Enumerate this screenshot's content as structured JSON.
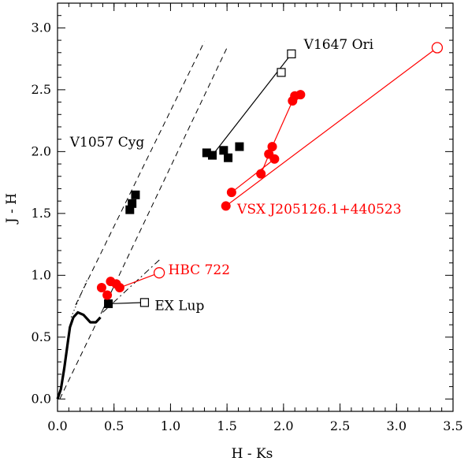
{
  "chart_data": {
    "type": "scatter",
    "xlabel": "H - Ks",
    "ylabel": "J - H",
    "xlim": [
      0.0,
      3.5
    ],
    "ylim": [
      -0.1,
      3.2
    ],
    "x_ticks": [
      "0.0",
      "0.5",
      "1.0",
      "1.5",
      "2.0",
      "2.5",
      "3.0",
      "3.5"
    ],
    "y_ticks": [
      "0.0",
      "0.5",
      "1.0",
      "1.5",
      "2.0",
      "2.5",
      "3.0"
    ],
    "grid": false,
    "colors": {
      "black": "#000000",
      "red": "#ff0000"
    },
    "main_sequence": [
      [
        0.0,
        0.0
      ],
      [
        0.03,
        0.08
      ],
      [
        0.06,
        0.25
      ],
      [
        0.09,
        0.45
      ],
      [
        0.11,
        0.58
      ],
      [
        0.14,
        0.66
      ],
      [
        0.18,
        0.7
      ],
      [
        0.23,
        0.68
      ],
      [
        0.29,
        0.62
      ],
      [
        0.34,
        0.62
      ],
      [
        0.38,
        0.66
      ]
    ],
    "reddening_lines": [
      {
        "style": "dashed",
        "points": [
          [
            0.16,
            0.76
          ],
          [
            1.3,
            2.89
          ]
        ]
      },
      {
        "style": "dashed",
        "points": [
          [
            0.4,
            0.72
          ],
          [
            1.5,
            2.84
          ]
        ]
      },
      {
        "style": "dashed",
        "points": [
          [
            0.02,
            0.0
          ],
          [
            0.4,
            0.72
          ]
        ]
      },
      {
        "style": "dashdot",
        "points": [
          [
            0.4,
            0.7
          ],
          [
            0.92,
            1.14
          ]
        ]
      },
      {
        "style": "dotted",
        "points": [
          [
            0.12,
            0.66
          ],
          [
            0.26,
            0.96
          ]
        ]
      }
    ],
    "groups": [
      {
        "label": "V1647 Ori",
        "color": "#000000",
        "filled": [
          [
            1.32,
            1.99
          ],
          [
            1.37,
            1.97
          ],
          [
            1.47,
            2.01
          ],
          [
            1.51,
            1.95
          ],
          [
            1.61,
            2.04
          ]
        ],
        "open": [
          [
            1.98,
            2.64
          ],
          [
            2.07,
            2.79
          ]
        ],
        "links": [
          [
            [
              1.37,
              1.97
            ],
            [
              2.07,
              2.79
            ]
          ]
        ]
      },
      {
        "label": "V1057 Cyg",
        "color": "#000000",
        "filled": [
          [
            0.64,
            1.53
          ],
          [
            0.66,
            1.58
          ],
          [
            0.69,
            1.65
          ]
        ],
        "open": [],
        "links": []
      },
      {
        "label": "EX Lup",
        "color": "#000000",
        "filled": [
          [
            0.45,
            0.77
          ]
        ],
        "open": [
          [
            0.77,
            0.78
          ]
        ],
        "links": [
          [
            [
              0.45,
              0.77
            ],
            [
              0.77,
              0.78
            ]
          ]
        ]
      },
      {
        "label": "VSX J205126.1+440523",
        "color": "#ff0000",
        "filled": [
          [
            1.49,
            1.56
          ],
          [
            1.54,
            1.67
          ],
          [
            1.8,
            1.82
          ],
          [
            1.87,
            1.98
          ],
          [
            1.9,
            2.04
          ],
          [
            1.92,
            1.94
          ],
          [
            2.08,
            2.41
          ],
          [
            2.1,
            2.45
          ],
          [
            2.15,
            2.46
          ]
        ],
        "open": [
          [
            3.36,
            2.84
          ]
        ],
        "links": [
          [
            [
              1.49,
              1.56
            ],
            [
              3.36,
              2.84
            ]
          ],
          [
            [
              1.54,
              1.67
            ],
            [
              1.92,
              1.94
            ]
          ],
          [
            [
              1.8,
              1.82
            ],
            [
              1.9,
              2.04
            ]
          ],
          [
            [
              1.87,
              1.98
            ],
            [
              2.08,
              2.41
            ]
          ]
        ]
      },
      {
        "label": "HBC 722",
        "color": "#ff0000",
        "filled": [
          [
            0.39,
            0.9
          ],
          [
            0.44,
            0.84
          ],
          [
            0.47,
            0.95
          ],
          [
            0.52,
            0.93
          ],
          [
            0.55,
            0.9
          ]
        ],
        "open": [
          [
            0.9,
            1.02
          ]
        ],
        "links": [
          [
            [
              0.55,
              0.9
            ],
            [
              0.9,
              1.02
            ]
          ]
        ]
      }
    ]
  }
}
